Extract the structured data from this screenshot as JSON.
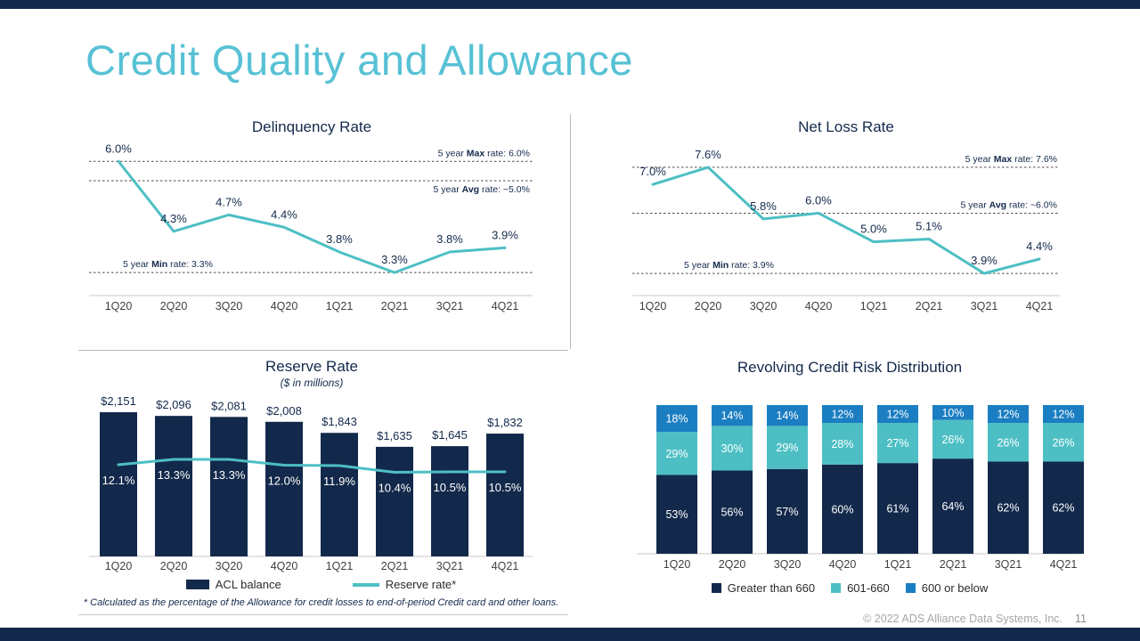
{
  "slide": {
    "title": "Credit Quality and Allowance",
    "footer_copyright": "© 2022 ADS Alliance Data Systems, Inc.",
    "footer_page": "11"
  },
  "colors": {
    "navy": "#13294B",
    "teal": "#4DBFC4",
    "blue": "#1B7EC2",
    "title_accent": "#57C1D5",
    "footer_gray": "#A6A6A6"
  },
  "chart_data": [
    {
      "id": "delinquency",
      "type": "line",
      "title": "Delinquency Rate",
      "categories": [
        "1Q20",
        "2Q20",
        "3Q20",
        "4Q20",
        "1Q21",
        "2Q21",
        "3Q21",
        "4Q21"
      ],
      "values": [
        6.0,
        4.3,
        4.7,
        4.4,
        3.8,
        3.3,
        3.8,
        3.9
      ],
      "labels": [
        "6.0%",
        "4.3%",
        "4.7%",
        "4.4%",
        "3.8%",
        "3.3%",
        "3.8%",
        "3.9%"
      ],
      "ylim": [
        3.0,
        6.2
      ],
      "grid": false,
      "ref_lines": [
        {
          "pre": "5 year ",
          "bold": "Max",
          "post": " rate: 6.0%",
          "value": 6.0,
          "align": "right"
        },
        {
          "pre": "5 year ",
          "bold": "Avg",
          "post": " rate: ~5.0%",
          "value": 5.0,
          "align": "right"
        },
        {
          "pre": "5 year ",
          "bold": "Min",
          "post": " rate: 3.3%",
          "value": 3.3,
          "align": "left"
        }
      ]
    },
    {
      "id": "net_loss",
      "type": "line",
      "title": "Net Loss Rate",
      "categories": [
        "1Q20",
        "2Q20",
        "3Q20",
        "4Q20",
        "1Q21",
        "2Q21",
        "3Q21",
        "4Q21"
      ],
      "values": [
        7.0,
        7.6,
        5.8,
        6.0,
        5.0,
        5.1,
        3.9,
        4.4
      ],
      "labels": [
        "7.0%",
        "7.6%",
        "5.8%",
        "6.0%",
        "5.0%",
        "5.1%",
        "3.9%",
        "4.4%"
      ],
      "ylim": [
        3.5,
        8.0
      ],
      "grid": false,
      "ref_lines": [
        {
          "pre": "5 year ",
          "bold": "Max",
          "post": " rate: 7.6%",
          "value": 7.6,
          "align": "right"
        },
        {
          "pre": "5 year ",
          "bold": "Avg",
          "post": " rate: ~6.0%",
          "value": 6.0,
          "align": "right"
        },
        {
          "pre": "5 year ",
          "bold": "Min",
          "post": " rate: 3.9%",
          "value": 3.9,
          "align": "left"
        }
      ]
    },
    {
      "id": "reserve_rate",
      "type": "bar",
      "title": "Reserve Rate",
      "subtitle": "($ in millions)",
      "categories": [
        "1Q20",
        "2Q20",
        "3Q20",
        "4Q20",
        "1Q21",
        "2Q21",
        "3Q21",
        "4Q21"
      ],
      "series": [
        {
          "name": "ACL balance",
          "kind": "bar",
          "color": "navy",
          "values": [
            2151,
            2096,
            2081,
            2008,
            1843,
            1635,
            1645,
            1832
          ],
          "labels": [
            "$2,151",
            "$2,096",
            "$2,081",
            "$2,008",
            "$1,843",
            "$1,635",
            "$1,645",
            "$1,832"
          ]
        },
        {
          "name": "Reserve rate*",
          "kind": "line",
          "color": "teal",
          "values": [
            12.1,
            13.3,
            13.3,
            12.0,
            11.9,
            10.4,
            10.5,
            10.5
          ],
          "labels": [
            "12.1%",
            "13.3%",
            "13.3%",
            "12.0%",
            "11.9%",
            "10.4%",
            "10.5%",
            "10.5%"
          ]
        }
      ],
      "legend_position": "bottom",
      "footnote": "* Calculated as the percentage of the Allowance for credit losses to end-of-period Credit card and other loans."
    },
    {
      "id": "risk_distribution",
      "type": "bar",
      "stacked": true,
      "title": "Revolving Credit Risk Distribution",
      "categories": [
        "1Q20",
        "2Q20",
        "3Q20",
        "4Q20",
        "1Q21",
        "2Q21",
        "3Q21",
        "4Q21"
      ],
      "series": [
        {
          "name": "Greater than 660",
          "color": "navy",
          "values": [
            53,
            56,
            57,
            60,
            61,
            64,
            62,
            62
          ],
          "labels": [
            "53%",
            "56%",
            "57%",
            "60%",
            "61%",
            "64%",
            "62%",
            "62%"
          ]
        },
        {
          "name": "601-660",
          "color": "teal",
          "values": [
            29,
            30,
            29,
            28,
            27,
            26,
            26,
            26
          ],
          "labels": [
            "29%",
            "30%",
            "29%",
            "28%",
            "27%",
            "26%",
            "26%",
            "26%"
          ]
        },
        {
          "name": "600 or below",
          "color": "blue",
          "values": [
            18,
            14,
            14,
            12,
            12,
            10,
            12,
            12
          ],
          "labels": [
            "18%",
            "14%",
            "14%",
            "12%",
            "12%",
            "10%",
            "12%",
            "12%"
          ]
        }
      ],
      "legend_position": "bottom",
      "ylim": [
        0,
        100
      ]
    }
  ]
}
